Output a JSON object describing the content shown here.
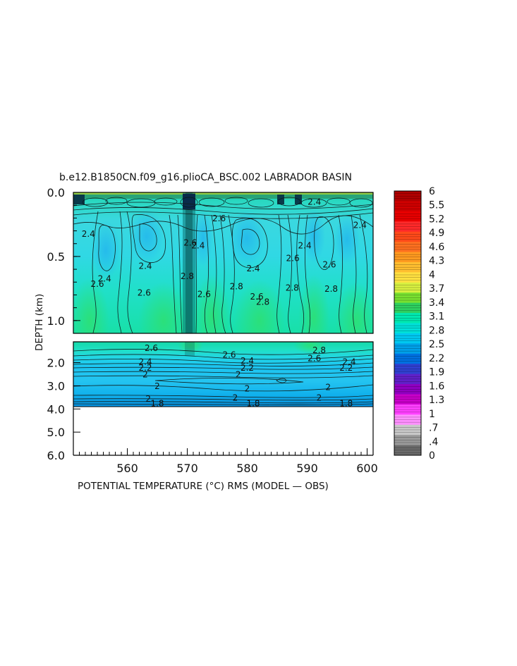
{
  "chart_data": {
    "type": "heatmap",
    "title": "b.e12.B1850CN.f09_g16.plioCA_BSC.002 LABRADOR BASIN",
    "xlabel": "POTENTIAL TEMPERATURE (°C) RMS (MODEL — OBS)",
    "ylabel": "DEPTH (km)",
    "xlim": [
      551,
      601
    ],
    "x_ticks": [
      560,
      570,
      580,
      590,
      600
    ],
    "upper_panel": {
      "ylim": [
        0.0,
        1.1
      ],
      "y_ticks": [
        0.0,
        0.5,
        1.0
      ],
      "y_tick_labels": [
        "0.0",
        "0.5",
        "1.0"
      ]
    },
    "lower_panel": {
      "ylim": [
        1.1,
        6.0
      ],
      "y_ticks": [
        2.0,
        3.0,
        4.0,
        5.0,
        6.0
      ],
      "y_tick_labels": [
        "2.0",
        "3.0",
        "4.0",
        "5.0",
        "6.0"
      ],
      "data_bottom_depth": 3.9
    },
    "colorbar": {
      "range": [
        0,
        6
      ],
      "labels": [
        "6",
        "5.5",
        "5.2",
        "4.9",
        "4.6",
        "4.3",
        "4",
        "3.7",
        "3.4",
        "3.1",
        "2.8",
        "2.5",
        "2.2",
        "1.9",
        "1.6",
        "1.3",
        "1",
        ".7",
        ".4",
        "0"
      ],
      "colors": [
        "#b00000",
        "#d00000",
        "#e80000",
        "#ff2a2a",
        "#ff4a1a",
        "#ff7020",
        "#ff9a20",
        "#ffbe30",
        "#ffe040",
        "#d8f040",
        "#78e030",
        "#2ed060",
        "#00e8b0",
        "#00e0d8",
        "#00c8f0",
        "#00a0e8",
        "#0070e0",
        "#3040d0",
        "#6020c8",
        "#9000c0",
        "#c800c8",
        "#ff40ff",
        "#ff90ff",
        "#c8c8c8",
        "#9a9a9a",
        "#6a6a6a"
      ]
    },
    "contour_labels_upper": [
      {
        "text": "2.4",
        "x": 553.5,
        "y": 0.33
      },
      {
        "text": "2.4",
        "x": 556.2,
        "y": 0.68
      },
      {
        "text": "2.6",
        "x": 555.0,
        "y": 0.72
      },
      {
        "text": "2.6",
        "x": 562.8,
        "y": 0.79
      },
      {
        "text": "2.4",
        "x": 563.0,
        "y": 0.58
      },
      {
        "text": "2.8",
        "x": 570.0,
        "y": 0.66
      },
      {
        "text": "2.6",
        "x": 570.5,
        "y": 0.4
      },
      {
        "text": "2.4",
        "x": 571.8,
        "y": 0.42
      },
      {
        "text": "2.6",
        "x": 572.8,
        "y": 0.8
      },
      {
        "text": "2.6",
        "x": 575.3,
        "y": 0.21
      },
      {
        "text": "2.8",
        "x": 578.2,
        "y": 0.74
      },
      {
        "text": "2.4",
        "x": 581.0,
        "y": 0.6
      },
      {
        "text": "2.6",
        "x": 581.6,
        "y": 0.82
      },
      {
        "text": "2.8",
        "x": 582.6,
        "y": 0.86
      },
      {
        "text": "2.8",
        "x": 587.5,
        "y": 0.75
      },
      {
        "text": "2.6",
        "x": 587.6,
        "y": 0.52
      },
      {
        "text": "2.4",
        "x": 589.6,
        "y": 0.42
      },
      {
        "text": "2.4",
        "x": 591.2,
        "y": 0.08
      },
      {
        "text": "2.6",
        "x": 593.7,
        "y": 0.57
      },
      {
        "text": "2.8",
        "x": 594.0,
        "y": 0.76
      },
      {
        "text": "2.4",
        "x": 598.8,
        "y": 0.26
      }
    ],
    "contour_labels_lower": [
      {
        "text": "2.6",
        "x": 564.0,
        "y": 1.4
      },
      {
        "text": "2.4",
        "x": 563.0,
        "y": 2.0
      },
      {
        "text": "2.2",
        "x": 563.0,
        "y": 2.25
      },
      {
        "text": "2",
        "x": 563.0,
        "y": 2.55
      },
      {
        "text": "2",
        "x": 565.0,
        "y": 3.05
      },
      {
        "text": "2",
        "x": 563.5,
        "y": 3.6
      },
      {
        "text": "1.8",
        "x": 565.0,
        "y": 3.8
      },
      {
        "text": "2.6",
        "x": 577.0,
        "y": 1.7
      },
      {
        "text": "2.4",
        "x": 580.0,
        "y": 1.95
      },
      {
        "text": "2.2",
        "x": 580.0,
        "y": 2.25
      },
      {
        "text": "2",
        "x": 578.5,
        "y": 2.55
      },
      {
        "text": "2",
        "x": 580.0,
        "y": 3.15
      },
      {
        "text": "2",
        "x": 578.0,
        "y": 3.55
      },
      {
        "text": "1.8",
        "x": 581.0,
        "y": 3.8
      },
      {
        "text": "2.8",
        "x": 592.0,
        "y": 1.5
      },
      {
        "text": "2.6",
        "x": 591.2,
        "y": 1.85
      },
      {
        "text": "2.4",
        "x": 597.0,
        "y": 2.0
      },
      {
        "text": "2.2",
        "x": 596.5,
        "y": 2.25
      },
      {
        "text": "2",
        "x": 593.5,
        "y": 3.1
      },
      {
        "text": "2",
        "x": 592.0,
        "y": 3.55
      },
      {
        "text": "1.8",
        "x": 596.5,
        "y": 3.8
      }
    ]
  }
}
